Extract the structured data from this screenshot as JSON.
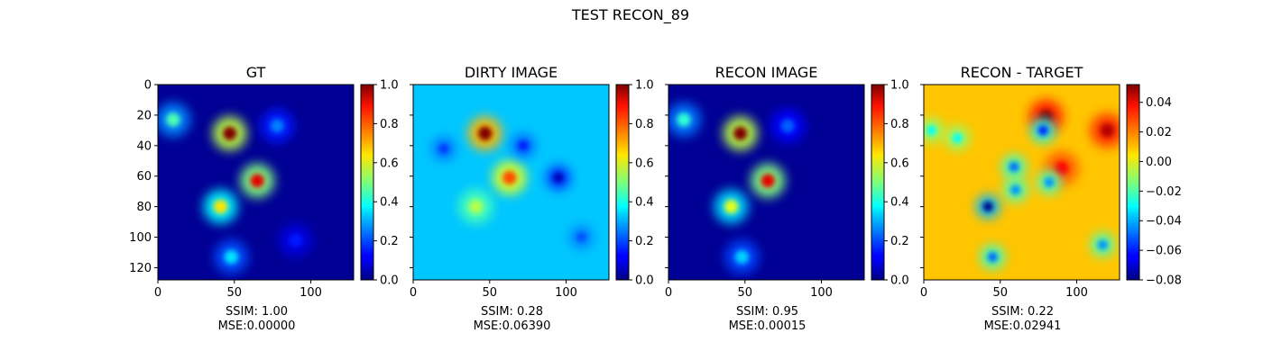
{
  "figure": {
    "suptitle": "TEST RECON_89"
  },
  "chart_data": [
    {
      "type": "heatmap",
      "title": "GT",
      "image_extent": [
        0,
        128
      ],
      "x_ticks": [
        0,
        50,
        100
      ],
      "y_ticks": [
        0,
        20,
        40,
        60,
        80,
        100,
        120
      ],
      "y_tick_labels_visible": true,
      "colormap": "jet",
      "colorbar": {
        "min": 0.0,
        "max": 1.0,
        "ticks": [
          "0.0",
          "0.2",
          "0.4",
          "0.6",
          "0.8",
          "1.0"
        ]
      },
      "background_value": 0.02,
      "features": [
        {
          "x": 47,
          "y": 32,
          "value": 1.0,
          "kind": "peak"
        },
        {
          "x": 65,
          "y": 63,
          "value": 0.9,
          "kind": "peak"
        },
        {
          "x": 41,
          "y": 80,
          "value": 0.65,
          "kind": "peak"
        },
        {
          "x": 10,
          "y": 23,
          "value": 0.45,
          "kind": "peak"
        },
        {
          "x": 48,
          "y": 113,
          "value": 0.35,
          "kind": "peak"
        },
        {
          "x": 78,
          "y": 27,
          "value": 0.25,
          "kind": "peak"
        },
        {
          "x": 90,
          "y": 102,
          "value": 0.15,
          "kind": "peak"
        }
      ],
      "caption": [
        "SSIM: 1.00",
        "MSE:0.00000"
      ]
    },
    {
      "type": "heatmap",
      "title": "DIRTY IMAGE",
      "image_extent": [
        0,
        128
      ],
      "x_ticks": [
        0,
        50,
        100
      ],
      "y_ticks": [
        0,
        20,
        40,
        60,
        80,
        100,
        120
      ],
      "y_tick_labels_visible": false,
      "colormap": "jet",
      "colorbar": {
        "min": 0.0,
        "max": 1.0,
        "ticks": [
          "0.0",
          "0.2",
          "0.4",
          "0.6",
          "0.8",
          "1.0"
        ]
      },
      "background_value": 0.32,
      "features": [
        {
          "x": 47,
          "y": 32,
          "value": 1.0,
          "kind": "peak"
        },
        {
          "x": 63,
          "y": 61,
          "value": 0.8,
          "kind": "peak"
        },
        {
          "x": 41,
          "y": 80,
          "value": 0.55,
          "kind": "peak"
        },
        {
          "x": 95,
          "y": 61,
          "value": 0.05,
          "kind": "hole"
        },
        {
          "x": 72,
          "y": 40,
          "value": 0.15,
          "kind": "hole"
        },
        {
          "x": 20,
          "y": 42,
          "value": 0.18,
          "kind": "hole"
        },
        {
          "x": 110,
          "y": 100,
          "value": 0.2,
          "kind": "hole"
        }
      ],
      "caption": [
        "SSIM: 0.28",
        "MSE:0.06390"
      ]
    },
    {
      "type": "heatmap",
      "title": "RECON IMAGE",
      "image_extent": [
        0,
        128
      ],
      "x_ticks": [
        0,
        50,
        100
      ],
      "y_ticks": [
        0,
        20,
        40,
        60,
        80,
        100,
        120
      ],
      "y_tick_labels_visible": false,
      "colormap": "jet",
      "colorbar": {
        "min": 0.0,
        "max": 1.0,
        "ticks": [
          "0.0",
          "0.2",
          "0.4",
          "0.6",
          "0.8",
          "1.0"
        ]
      },
      "background_value": 0.02,
      "features": [
        {
          "x": 47,
          "y": 32,
          "value": 1.0,
          "kind": "peak"
        },
        {
          "x": 65,
          "y": 63,
          "value": 0.9,
          "kind": "peak"
        },
        {
          "x": 41,
          "y": 80,
          "value": 0.6,
          "kind": "peak"
        },
        {
          "x": 10,
          "y": 23,
          "value": 0.42,
          "kind": "peak"
        },
        {
          "x": 48,
          "y": 113,
          "value": 0.33,
          "kind": "peak"
        },
        {
          "x": 78,
          "y": 27,
          "value": 0.22,
          "kind": "peak"
        }
      ],
      "caption": [
        "SSIM: 0.95",
        "MSE:0.00015"
      ]
    },
    {
      "type": "heatmap",
      "title": "RECON - TARGET",
      "image_extent": [
        0,
        128
      ],
      "x_ticks": [
        0,
        50,
        100
      ],
      "y_ticks": [
        0,
        20,
        40,
        60,
        80,
        100,
        120
      ],
      "y_tick_labels_visible": false,
      "colormap": "jet",
      "colorbar": {
        "min": -0.08,
        "max": 0.052,
        "ticks": [
          "0.04",
          "0.02",
          "0.00",
          "−0.02",
          "−0.04",
          "−0.06",
          "−0.08"
        ],
        "tick_values": [
          0.04,
          0.02,
          0.0,
          -0.02,
          -0.04,
          -0.06,
          -0.08
        ]
      },
      "background_value": 0.01,
      "features": [
        {
          "x": 80,
          "y": 21,
          "value": 0.05,
          "kind": "peak"
        },
        {
          "x": 120,
          "y": 30,
          "value": 0.045,
          "kind": "peak"
        },
        {
          "x": 90,
          "y": 55,
          "value": 0.035,
          "kind": "peak"
        },
        {
          "x": 78,
          "y": 30,
          "value": -0.06,
          "kind": "hole"
        },
        {
          "x": 42,
          "y": 80,
          "value": -0.08,
          "kind": "hole"
        },
        {
          "x": 59,
          "y": 54,
          "value": -0.05,
          "kind": "hole"
        },
        {
          "x": 60,
          "y": 69,
          "value": -0.045,
          "kind": "hole"
        },
        {
          "x": 82,
          "y": 64,
          "value": -0.045,
          "kind": "hole"
        },
        {
          "x": 45,
          "y": 113,
          "value": -0.05,
          "kind": "hole"
        },
        {
          "x": 117,
          "y": 105,
          "value": -0.045,
          "kind": "hole"
        },
        {
          "x": 5,
          "y": 30,
          "value": -0.03,
          "kind": "hole"
        },
        {
          "x": 22,
          "y": 35,
          "value": -0.03,
          "kind": "hole"
        }
      ],
      "caption": [
        "SSIM: 0.22",
        "MSE:0.02941"
      ]
    }
  ]
}
